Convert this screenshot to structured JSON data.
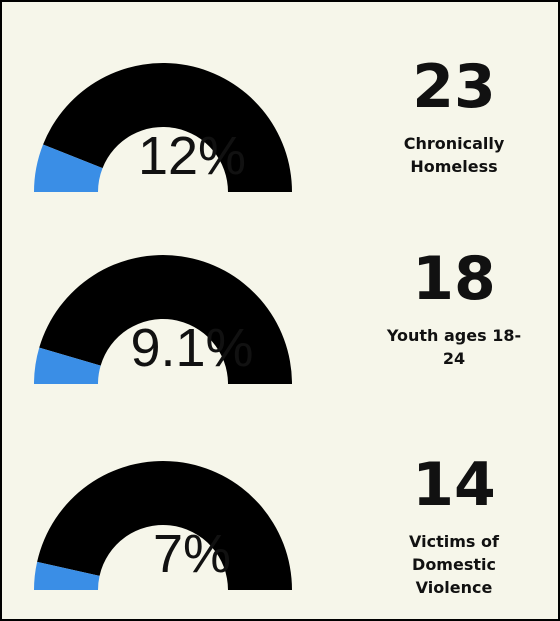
{
  "chart_data": [
    {
      "type": "gauge",
      "values": [
        12
      ],
      "value_labels": [
        "12%"
      ],
      "ylim": [
        0,
        100
      ],
      "color": "#3a8ee6",
      "track_color": "#000000",
      "count": 23,
      "label": "Chronically Homeless"
    },
    {
      "type": "gauge",
      "values": [
        9.1
      ],
      "value_labels": [
        "9.1%"
      ],
      "ylim": [
        0,
        100
      ],
      "color": "#3a8ee6",
      "track_color": "#000000",
      "count": 18,
      "label": "Youth ages 18-24"
    },
    {
      "type": "gauge",
      "values": [
        7
      ],
      "value_labels": [
        "7%"
      ],
      "ylim": [
        0,
        100
      ],
      "color": "#3a8ee6",
      "track_color": "#000000",
      "count": 14,
      "label": "Victims of Domestic Violence"
    }
  ]
}
